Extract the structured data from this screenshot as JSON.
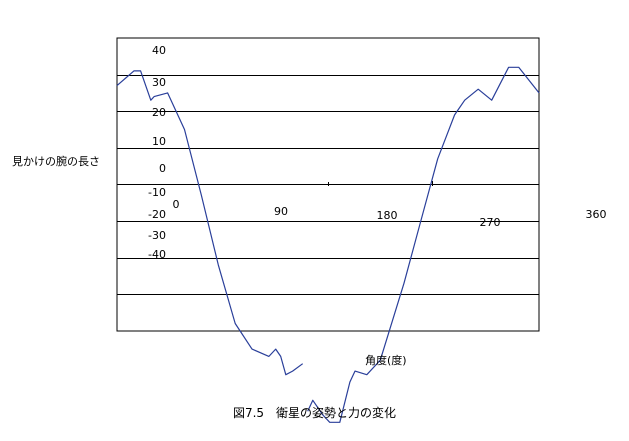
{
  "chart_data": {
    "type": "line",
    "ylabel": "見かけの腕の長さ",
    "xlabel": "角度(度)",
    "caption": "図7.5　衛星の姿勢と力の変化",
    "y_tick_labels": [
      "40",
      "30",
      "20",
      "10",
      "0",
      "-10",
      "-20",
      "-30",
      "-40"
    ],
    "x_tick_labels": [
      "0",
      "90",
      "180",
      "270",
      "360"
    ],
    "gridlines": "horizontal",
    "series_color": "#2a3f9a",
    "segments": [
      [
        [
          0,
          27
        ],
        [
          10,
          31
        ],
        [
          14,
          31
        ],
        [
          20,
          23
        ],
        [
          22,
          24
        ],
        [
          30,
          25
        ],
        [
          40,
          15
        ],
        [
          50,
          -3
        ],
        [
          60,
          -22
        ],
        [
          70,
          -38
        ],
        [
          80,
          -45
        ],
        [
          90,
          -47
        ],
        [
          94,
          -45
        ],
        [
          97,
          -47
        ],
        [
          100,
          -52
        ],
        [
          104,
          -51
        ],
        [
          110,
          -49
        ]
      ],
      [
        [
          113,
          -62
        ],
        [
          116,
          -59
        ],
        [
          122,
          -63
        ],
        [
          126,
          -65
        ],
        [
          132,
          -65
        ],
        [
          138,
          -54
        ],
        [
          141,
          -51
        ],
        [
          148,
          -52
        ],
        [
          156,
          -48
        ],
        [
          170,
          -27
        ],
        [
          180,
          -10
        ],
        [
          190,
          7
        ],
        [
          200,
          19
        ],
        [
          206,
          23
        ],
        [
          214,
          26
        ],
        [
          222,
          23
        ],
        [
          232,
          32
        ],
        [
          238,
          32
        ],
        [
          250,
          25
        ]
      ]
    ]
  }
}
